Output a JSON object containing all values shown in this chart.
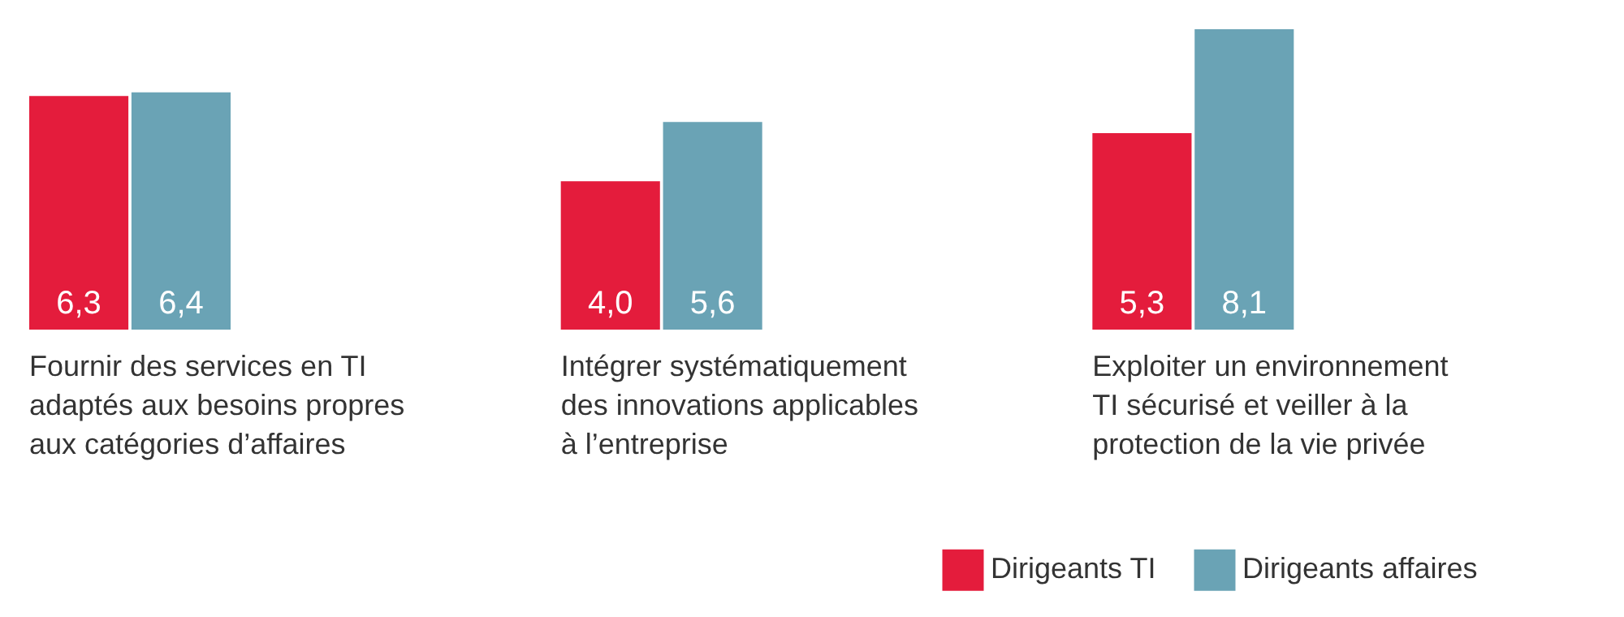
{
  "chart_data": {
    "type": "bar",
    "categories": [
      "Fournir des services en TI adaptés aux besoins propres aux catégories d’affaires",
      "Intégrer systématiquement des innovations applicables à l’entreprise",
      "Exploiter un environnement TI sécurisé et veiller à la protection de la vie privée"
    ],
    "series": [
      {
        "name": "Dirigeants TI",
        "color": "#e41c3c",
        "values": [
          6.3,
          4.0,
          5.3
        ],
        "value_labels": [
          "6,3",
          "4,0",
          "5,3"
        ]
      },
      {
        "name": "Dirigeants affaires",
        "color": "#6aa3b5",
        "values": [
          6.4,
          5.6,
          8.1
        ],
        "value_labels": [
          "6,4",
          "5,6",
          "8,1"
        ]
      }
    ],
    "legend": "bottom right"
  }
}
